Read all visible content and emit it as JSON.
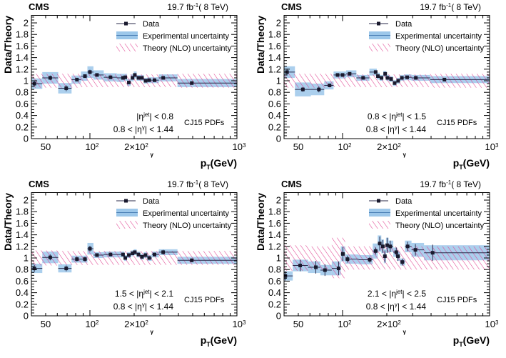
{
  "chart_data": {
    "type": "scatter",
    "title": "",
    "common": {
      "experiment": "CMS",
      "lumi": {
        "value": "19.7 fb",
        "sup": "-1",
        "energy": "( 8 TeV)"
      },
      "ylabel": "Data/Theory",
      "xlabel": {
        "main": "p",
        "sub": "T",
        "sup": "γ",
        "unit": " (GeV)"
      },
      "xscale": "log",
      "xlim": [
        40,
        1000
      ],
      "ylim": [
        0,
        2.13
      ],
      "yticks": [
        "0",
        "0.2",
        "0.4",
        "0.6",
        "0.8",
        "1",
        "1.2",
        "1.4",
        "1.6",
        "1.8",
        "2"
      ],
      "xticks": [
        {
          "value": 50,
          "label": "50",
          "sup": ""
        },
        {
          "value": 100,
          "label": "10",
          "sup": "2"
        },
        {
          "value": 200,
          "label": "2×10",
          "sup": "2"
        },
        {
          "value": 1000,
          "label": "10",
          "sup": "3"
        }
      ],
      "legend": {
        "placement": "top-right",
        "entries": [
          "Data",
          "Experimental uncertainty",
          "Theory (NLO) uncertainty"
        ]
      },
      "pdf_label": "CJ15 PDFs",
      "colors": {
        "exp_band": "#9cc7ea",
        "theory_hatch": "#e0408f",
        "data": "#1a1a2e"
      }
    },
    "panels": [
      {
        "eta_jet": {
          "pre": "",
          "sym": "|η",
          "sup": "jet",
          "post": "| < 0.8"
        },
        "eta_gamma": {
          "pre": "0.8 < ",
          "sym": "|η",
          "sup": "γ",
          "post": "| < 1.44"
        },
        "x": [
          41.9,
          53.7,
          69,
          81.6,
          92.5,
          100,
          111.7,
          138,
          168,
          174,
          184,
          195,
          202,
          214,
          226,
          239,
          253,
          275,
          315,
          493
        ],
        "y": [
          0.95,
          1.05,
          0.87,
          1.02,
          1.08,
          1.15,
          1.1,
          1.06,
          1.05,
          1.06,
          0.97,
          1.05,
          1.1,
          1.05,
          1.05,
          1.0,
          1.01,
          1.01,
          1.05,
          0.96
        ],
        "stat": [
          0.05,
          0.04,
          0.05,
          0.03,
          0.03,
          0.04,
          0.02,
          0.02,
          0.02,
          0.02,
          0.02,
          0.02,
          0.02,
          0.02,
          0.02,
          0.02,
          0.02,
          0.02,
          0.02,
          0.02
        ],
        "exp": [
          0.09,
          0.1,
          0.09,
          0.07,
          0.08,
          0.1,
          0.08,
          0.07,
          0.07,
          0.06,
          0.06,
          0.06,
          0.06,
          0.05,
          0.05,
          0.05,
          0.05,
          0.05,
          0.06,
          0.07
        ],
        "theory": [
          0.12,
          0.12,
          0.12,
          0.12,
          0.11,
          0.11,
          0.11,
          0.11,
          0.11,
          0.11,
          0.11,
          0.11,
          0.11,
          0.11,
          0.11,
          0.11,
          0.11,
          0.11,
          0.11,
          0.12
        ]
      },
      {
        "eta_jet": {
          "pre": "0.8 < ",
          "sym": "|η",
          "sup": "jet",
          "post": "| < 1.5"
        },
        "eta_gamma": {
          "pre": "0.8 < ",
          "sym": "|η",
          "sup": "γ",
          "post": "| < 1.44"
        },
        "x": [
          41.9,
          53.7,
          69,
          81.6,
          92.5,
          100,
          111.7,
          138,
          168,
          174,
          184,
          195,
          202,
          214,
          226,
          239,
          253,
          275,
          315,
          493
        ],
        "y": [
          1.15,
          0.85,
          0.85,
          0.92,
          1.1,
          1.1,
          1.12,
          1.05,
          1.15,
          1.08,
          1.05,
          1.12,
          1.05,
          1.03,
          0.96,
          1.0,
          1.05,
          1.06,
          1.05,
          1.02
        ],
        "stat": [
          0.06,
          0.04,
          0.05,
          0.03,
          0.03,
          0.03,
          0.02,
          0.02,
          0.03,
          0.03,
          0.03,
          0.03,
          0.03,
          0.02,
          0.02,
          0.02,
          0.02,
          0.02,
          0.02,
          0.02
        ],
        "exp": [
          0.1,
          0.12,
          0.1,
          0.07,
          0.06,
          0.06,
          0.06,
          0.05,
          0.06,
          0.06,
          0.05,
          0.05,
          0.05,
          0.05,
          0.05,
          0.05,
          0.05,
          0.05,
          0.05,
          0.06
        ],
        "theory": [
          0.12,
          0.12,
          0.12,
          0.12,
          0.11,
          0.11,
          0.11,
          0.11,
          0.11,
          0.11,
          0.11,
          0.11,
          0.11,
          0.11,
          0.11,
          0.11,
          0.11,
          0.11,
          0.11,
          0.12
        ]
      },
      {
        "eta_jet": {
          "pre": "1.5 < ",
          "sym": "|η",
          "sup": "jet",
          "post": "| < 2.1"
        },
        "eta_gamma": {
          "pre": "0.8 < ",
          "sym": "|η",
          "sup": "γ",
          "post": "| < 1.44"
        },
        "x": [
          41.9,
          53.7,
          69,
          81.6,
          92.5,
          100,
          111.7,
          138,
          168,
          174,
          184,
          195,
          202,
          214,
          226,
          239,
          253,
          275,
          315,
          493
        ],
        "y": [
          0.82,
          1.01,
          0.82,
          0.98,
          0.98,
          1.16,
          1.05,
          1.06,
          1.06,
          1.0,
          1.05,
          1.08,
          1.1,
          1.06,
          1.02,
          1.05,
          1.0,
          1.06,
          1.1,
          0.96
        ],
        "stat": [
          0.06,
          0.05,
          0.05,
          0.04,
          0.04,
          0.05,
          0.03,
          0.03,
          0.03,
          0.03,
          0.03,
          0.03,
          0.03,
          0.03,
          0.03,
          0.03,
          0.03,
          0.03,
          0.04,
          0.03
        ],
        "exp": [
          0.08,
          0.1,
          0.07,
          0.06,
          0.06,
          0.1,
          0.05,
          0.05,
          0.05,
          0.05,
          0.05,
          0.05,
          0.05,
          0.05,
          0.05,
          0.05,
          0.05,
          0.05,
          0.05,
          0.06
        ],
        "theory": [
          0.13,
          0.13,
          0.12,
          0.12,
          0.12,
          0.12,
          0.12,
          0.12,
          0.12,
          0.12,
          0.12,
          0.12,
          0.12,
          0.12,
          0.12,
          0.12,
          0.12,
          0.12,
          0.12,
          0.12
        ]
      },
      {
        "eta_jet": {
          "pre": "2.1 < ",
          "sym": "|η",
          "sup": "jet",
          "post": "| < 2.5"
        },
        "eta_gamma": {
          "pre": "0.8 < ",
          "sym": "|η",
          "sup": "γ",
          "post": "| < 1.44"
        },
        "x": [
          40.8,
          51.5,
          65.8,
          75.9,
          94,
          100.5,
          108,
          153,
          168,
          179,
          188,
          194,
          201,
          211,
          232,
          238,
          255,
          277,
          313,
          410
        ],
        "y": [
          0.69,
          0.87,
          0.84,
          0.79,
          0.82,
          1.07,
          0.98,
          0.97,
          1.12,
          1.25,
          1.2,
          1.03,
          1.22,
          1.2,
          1.1,
          1.03,
          0.93,
          1.2,
          1.14,
          1.09
        ],
        "stat": [
          0.08,
          0.1,
          0.11,
          0.1,
          0.12,
          0.12,
          0.06,
          0.05,
          0.06,
          0.12,
          0.11,
          0.1,
          0.13,
          0.1,
          0.08,
          0.08,
          0.06,
          0.08,
          0.1,
          0.14
        ],
        "exp": [
          0.08,
          0.1,
          0.1,
          0.09,
          0.12,
          0.13,
          0.08,
          0.08,
          0.13,
          0.14,
          0.12,
          0.12,
          0.13,
          0.1,
          0.08,
          0.08,
          0.06,
          0.1,
          0.12,
          0.13
        ],
        "theory": [
          0.22,
          0.22,
          0.2,
          0.2,
          0.35,
          0.35,
          0.2,
          0.2,
          0.2,
          0.2,
          0.2,
          0.2,
          0.2,
          0.2,
          0.2,
          0.2,
          0.2,
          0.2,
          0.2,
          0.2
        ]
      }
    ]
  }
}
